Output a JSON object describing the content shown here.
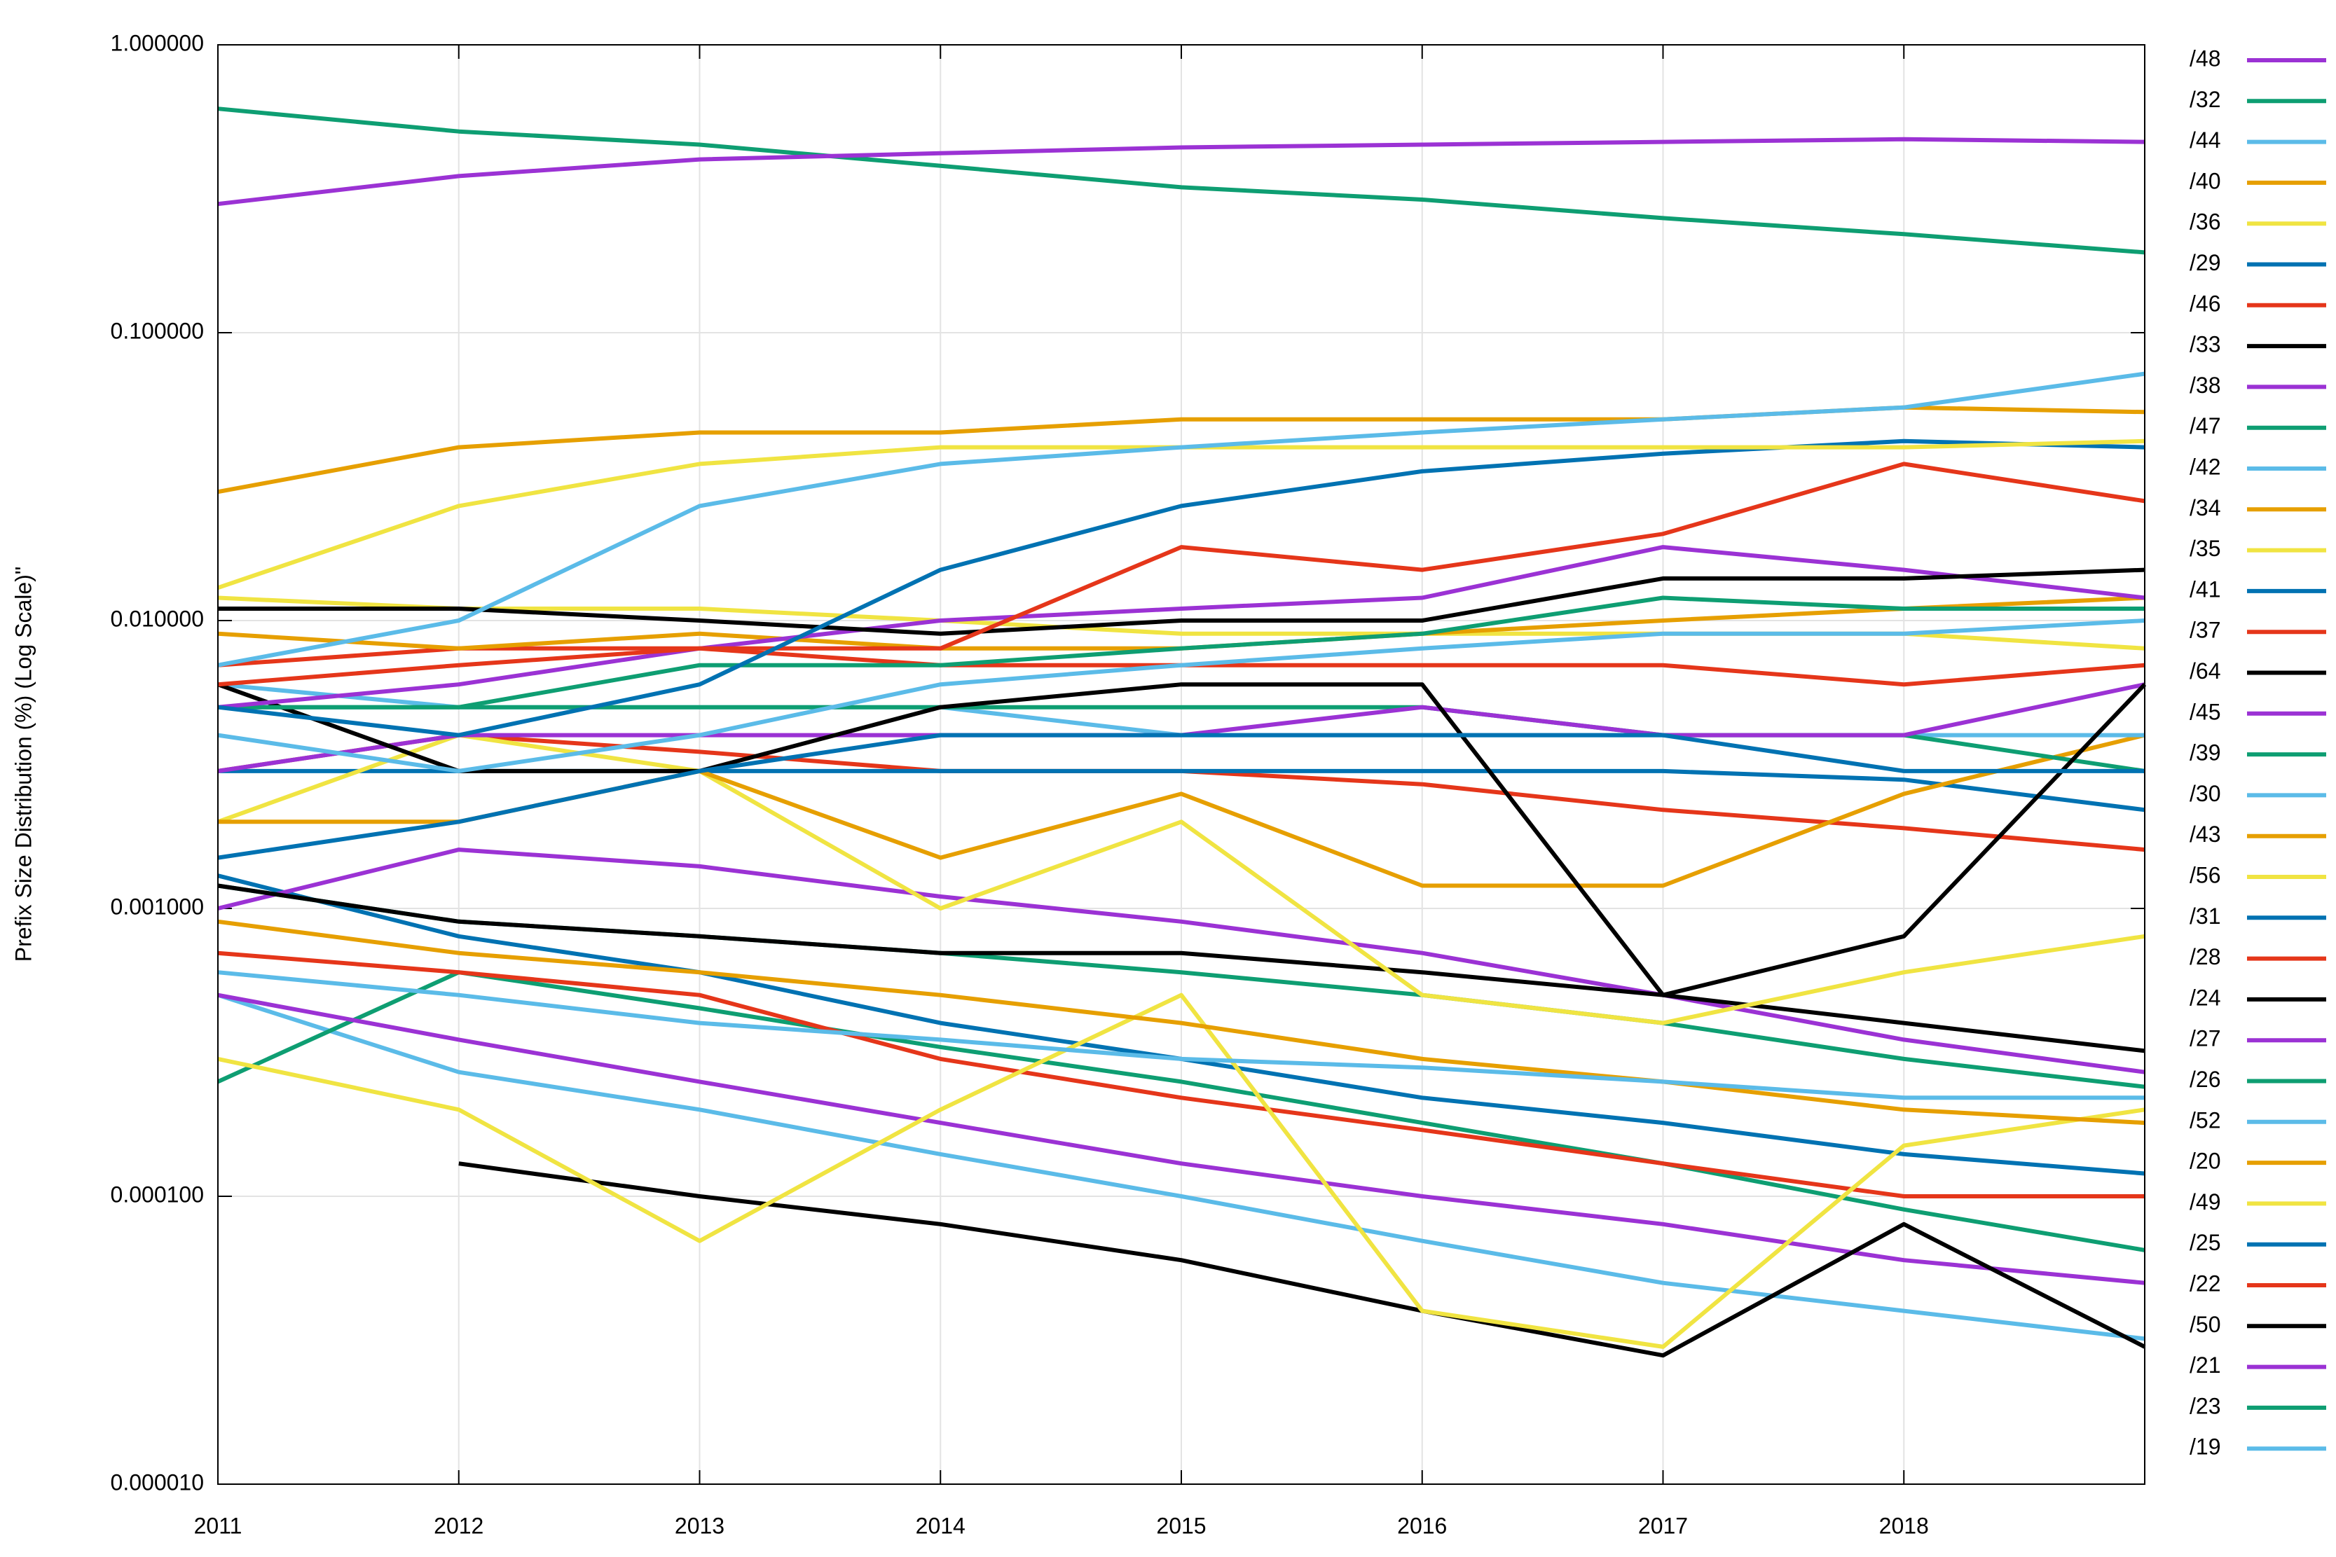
{
  "chart_data": {
    "type": "line",
    "y_label": "Prefix Size Distribution (%) (Log Scale)\"",
    "log_y": true,
    "grid": true,
    "legend": "right",
    "x": [
      2011,
      2012,
      2013,
      2014,
      2015,
      2016,
      2017,
      2018,
      2019
    ],
    "xlim": [
      2011,
      2019
    ],
    "xticks": [
      2011,
      2012,
      2013,
      2014,
      2015,
      2016,
      2017,
      2018
    ],
    "ylim": [
      1e-05,
      1
    ],
    "yticks": [
      {
        "value": 1e-05,
        "label": "0.000010"
      },
      {
        "value": 0.0001,
        "label": "0.000100"
      },
      {
        "value": 0.001,
        "label": "0.001000"
      },
      {
        "value": 0.01,
        "label": "0.010000"
      },
      {
        "value": 0.1,
        "label": "0.100000"
      },
      {
        "value": 1,
        "label": "1.000000"
      }
    ],
    "series": [
      {
        "name": "/48",
        "color": "#9b32d4",
        "values": [
          0.28,
          0.35,
          0.4,
          0.42,
          0.44,
          0.45,
          0.46,
          0.47,
          0.46
        ]
      },
      {
        "name": "/32",
        "color": "#0e9e72",
        "values": [
          0.6,
          0.5,
          0.45,
          0.38,
          0.32,
          0.29,
          0.25,
          0.22,
          0.19
        ]
      },
      {
        "name": "/44",
        "color": "#5bbbe8",
        "values": [
          0.007,
          0.01,
          0.025,
          0.035,
          0.04,
          0.045,
          0.05,
          0.055,
          0.072
        ]
      },
      {
        "name": "/40",
        "color": "#e69f00",
        "values": [
          0.028,
          0.04,
          0.045,
          0.045,
          0.05,
          0.05,
          0.05,
          0.055,
          0.053
        ]
      },
      {
        "name": "/36",
        "color": "#f0e442",
        "values": [
          0.013,
          0.025,
          0.035,
          0.04,
          0.04,
          0.04,
          0.04,
          0.04,
          0.042
        ]
      },
      {
        "name": "/29",
        "color": "#0072b2",
        "values": [
          0.005,
          0.004,
          0.006,
          0.015,
          0.025,
          0.033,
          0.038,
          0.042,
          0.04
        ]
      },
      {
        "name": "/46",
        "color": "#e5361a",
        "values": [
          0.006,
          0.007,
          0.008,
          0.008,
          0.018,
          0.015,
          0.02,
          0.035,
          0.026
        ]
      },
      {
        "name": "/33",
        "color": "#000000",
        "values": [
          0.011,
          0.011,
          0.01,
          0.009,
          0.01,
          0.01,
          0.014,
          0.014,
          0.015
        ]
      },
      {
        "name": "/38",
        "color": "#9b32d4",
        "values": [
          0.005,
          0.006,
          0.008,
          0.01,
          0.011,
          0.012,
          0.018,
          0.015,
          0.012
        ]
      },
      {
        "name": "/47",
        "color": "#0e9e72",
        "values": [
          0.005,
          0.005,
          0.007,
          0.007,
          0.008,
          0.009,
          0.012,
          0.011,
          0.011
        ]
      },
      {
        "name": "/42",
        "color": "#5bbbe8",
        "values": [
          0.004,
          0.003,
          0.004,
          0.006,
          0.007,
          0.008,
          0.009,
          0.009,
          0.01
        ]
      },
      {
        "name": "/34",
        "color": "#e69f00",
        "values": [
          0.009,
          0.008,
          0.009,
          0.008,
          0.008,
          0.009,
          0.01,
          0.011,
          0.012
        ]
      },
      {
        "name": "/35",
        "color": "#f0e442",
        "values": [
          0.012,
          0.011,
          0.011,
          0.01,
          0.009,
          0.009,
          0.009,
          0.009,
          0.008
        ]
      },
      {
        "name": "/41",
        "color": "#0072b2",
        "values": [
          0.0015,
          0.002,
          0.003,
          0.004,
          0.004,
          0.004,
          0.004,
          0.003,
          0.003
        ]
      },
      {
        "name": "/37",
        "color": "#e5361a",
        "values": [
          0.007,
          0.008,
          0.008,
          0.007,
          0.007,
          0.007,
          0.007,
          0.006,
          0.007
        ]
      },
      {
        "name": "/64",
        "color": "#000000",
        "values": [
          0.006,
          0.003,
          0.003,
          0.005,
          0.006,
          0.006,
          0.0005,
          0.0008,
          0.006
        ]
      },
      {
        "name": "/45",
        "color": "#9b32d4",
        "values": [
          0.003,
          0.004,
          0.004,
          0.004,
          0.004,
          0.005,
          0.004,
          0.004,
          0.006
        ]
      },
      {
        "name": "/39",
        "color": "#0e9e72",
        "values": [
          0.005,
          0.005,
          0.005,
          0.005,
          0.005,
          0.005,
          0.004,
          0.004,
          0.003
        ]
      },
      {
        "name": "/30",
        "color": "#5bbbe8",
        "values": [
          0.006,
          0.005,
          0.005,
          0.005,
          0.004,
          0.004,
          0.004,
          0.004,
          0.004
        ]
      },
      {
        "name": "/43",
        "color": "#e69f00",
        "values": [
          0.002,
          0.002,
          0.003,
          0.0015,
          0.0025,
          0.0012,
          0.0012,
          0.0025,
          0.004
        ]
      },
      {
        "name": "/56",
        "color": "#f0e442",
        "values": [
          0.002,
          0.004,
          0.003,
          0.001,
          0.002,
          0.0005,
          0.0004,
          0.0006,
          0.0008
        ]
      },
      {
        "name": "/31",
        "color": "#0072b2",
        "values": [
          0.003,
          0.003,
          0.003,
          0.003,
          0.003,
          0.003,
          0.003,
          0.0028,
          0.0022
        ]
      },
      {
        "name": "/28",
        "color": "#e5361a",
        "values": [
          0.003,
          0.004,
          0.0035,
          0.003,
          0.003,
          0.0027,
          0.0022,
          0.0019,
          0.0016
        ]
      },
      {
        "name": "/24",
        "color": "#000000",
        "values": [
          0.0012,
          0.0009,
          0.0008,
          0.0007,
          0.0007,
          0.0006,
          0.0005,
          0.0004,
          0.00032
        ]
      },
      {
        "name": "/27",
        "color": "#9b32d4",
        "values": [
          0.001,
          0.0016,
          0.0014,
          0.0011,
          0.0009,
          0.0007,
          0.0005,
          0.00035,
          0.00027
        ]
      },
      {
        "name": "/26",
        "color": "#0e9e72",
        "values": [
          0.0012,
          0.0009,
          0.0008,
          0.0007,
          0.0006,
          0.0005,
          0.0004,
          0.0003,
          0.00024
        ]
      },
      {
        "name": "/52",
        "color": "#5bbbe8",
        "values": [
          0.0006,
          0.0005,
          0.0004,
          0.00035,
          0.0003,
          0.00028,
          0.00025,
          0.00022,
          0.00022
        ]
      },
      {
        "name": "/20",
        "color": "#e69f00",
        "values": [
          0.0009,
          0.0007,
          0.0006,
          0.0005,
          0.0004,
          0.0003,
          0.00025,
          0.0002,
          0.00018
        ]
      },
      {
        "name": "/49",
        "color": "#f0e442",
        "values": [
          0.0003,
          0.0002,
          7e-05,
          0.0002,
          0.0005,
          4e-05,
          3e-05,
          0.00015,
          0.0002
        ]
      },
      {
        "name": "/25",
        "color": "#0072b2",
        "values": [
          0.0013,
          0.0008,
          0.0006,
          0.0004,
          0.0003,
          0.00022,
          0.00018,
          0.00014,
          0.00012
        ]
      },
      {
        "name": "/22",
        "color": "#e5361a",
        "values": [
          0.0007,
          0.0006,
          0.0005,
          0.0003,
          0.00022,
          0.00017,
          0.00013,
          0.0001,
          0.0001
        ]
      },
      {
        "name": "/50",
        "color": "#000000",
        "values": [
          null,
          0.00013,
          0.0001,
          8e-05,
          6e-05,
          4e-05,
          2.8e-05,
          8e-05,
          3e-05
        ]
      },
      {
        "name": "/21",
        "color": "#9b32d4",
        "values": [
          0.0005,
          0.00035,
          0.00025,
          0.00018,
          0.00013,
          0.0001,
          8e-05,
          6e-05,
          5e-05
        ]
      },
      {
        "name": "/23",
        "color": "#0e9e72",
        "values": [
          0.00025,
          0.0006,
          0.00045,
          0.00033,
          0.00025,
          0.00018,
          0.00013,
          9e-05,
          6.5e-05
        ]
      },
      {
        "name": "/19",
        "color": "#5bbbe8",
        "values": [
          0.0005,
          0.00027,
          0.0002,
          0.00014,
          0.0001,
          7e-05,
          5e-05,
          4e-05,
          3.2e-05
        ]
      }
    ]
  }
}
